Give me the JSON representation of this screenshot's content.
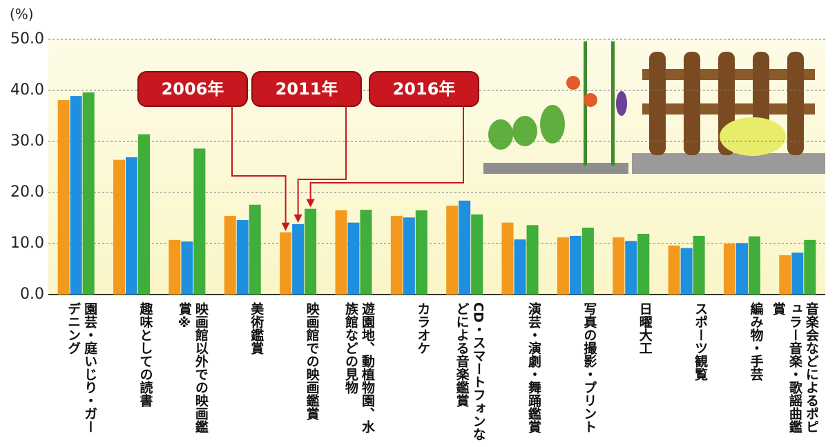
{
  "chart_data": {
    "type": "bar",
    "unit": "(%)",
    "categories": [
      "園芸・庭いじり・ガーデニング",
      "趣味としての読書",
      "映画館以外での映画鑑賞※",
      "美術鑑賞",
      "映画館での映画鑑賞",
      "遊園地、動植物園、水族館などの見物",
      "カラオケ",
      "CD・スマートフォンなどによる音楽鑑賞",
      "演芸・演劇・舞踊鑑賞",
      "写真の撮影・プリント",
      "日曜大工",
      "スポーツ観覧",
      "編み物・手芸",
      "音楽会などによるポピュラー音楽・歌謡曲鑑賞"
    ],
    "series": [
      {
        "name": "2006年",
        "color": "#f39a1e",
        "values": [
          38.1,
          26.4,
          10.7,
          15.4,
          12.2,
          16.5,
          15.4,
          17.4,
          14.1,
          11.2,
          11.2,
          9.6,
          10.0,
          7.7
        ]
      },
      {
        "name": "2011年",
        "color": "#1f8fe0",
        "values": [
          38.9,
          26.9,
          10.4,
          14.6,
          13.8,
          14.1,
          15.1,
          18.4,
          10.8,
          11.5,
          10.5,
          9.1,
          10.1,
          8.2
        ]
      },
      {
        "name": "2016年",
        "color": "#3fae3a",
        "values": [
          39.6,
          31.4,
          28.6,
          17.6,
          16.8,
          16.6,
          16.5,
          15.7,
          13.6,
          13.1,
          11.9,
          11.5,
          11.4,
          10.7
        ]
      }
    ],
    "ylim": [
      0,
      50
    ],
    "yticks": [
      {
        "value": 0,
        "label": "0.0"
      },
      {
        "value": 10,
        "label": "10.0"
      },
      {
        "value": 20,
        "label": "20.0"
      },
      {
        "value": 30,
        "label": "30.0"
      },
      {
        "value": 40,
        "label": "40.0"
      },
      {
        "value": 50,
        "label": "50.0"
      }
    ],
    "grid": true
  }
}
